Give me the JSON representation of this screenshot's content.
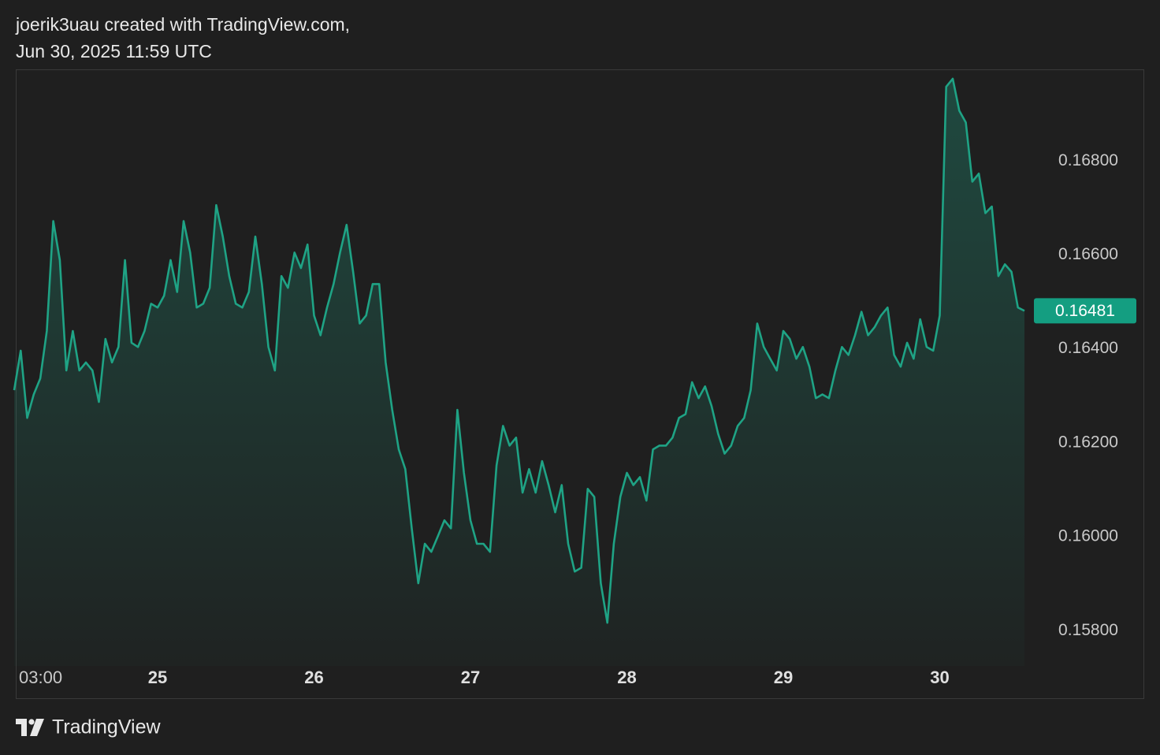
{
  "chart_data": {
    "type": "area",
    "title": "joerik3uau created with TradingView.com,",
    "subtitle": "Jun 30, 2025 11:59 UTC",
    "categories": [
      null,
      "03:00",
      null,
      null,
      null,
      null,
      null,
      null,
      null,
      null,
      null,
      null,
      null,
      null,
      null,
      null,
      null,
      null,
      null,
      null,
      null,
      null,
      "25",
      null,
      null,
      null,
      null,
      null,
      null,
      null,
      null,
      null,
      null,
      null,
      null,
      null,
      null,
      null,
      null,
      null,
      null,
      null,
      null,
      null,
      null,
      null,
      "26",
      null,
      null,
      null,
      null,
      null,
      null,
      null,
      null,
      null,
      null,
      null,
      null,
      null,
      null,
      null,
      null,
      null,
      null,
      null,
      null,
      null,
      null,
      null,
      "27",
      null,
      null,
      null,
      null,
      null,
      null,
      null,
      null,
      null,
      null,
      null,
      null,
      null,
      null,
      null,
      null,
      null,
      null,
      null,
      null,
      null,
      null,
      null,
      "28",
      null,
      null,
      null,
      null,
      null,
      null,
      null,
      null,
      null,
      null,
      null,
      null,
      null,
      null,
      null,
      null,
      null,
      null,
      null,
      null,
      null,
      null,
      null,
      "29",
      null,
      null,
      null,
      null,
      null,
      null,
      null,
      null,
      null,
      null,
      null,
      null,
      null,
      null,
      null,
      null,
      null,
      null,
      null,
      null,
      null,
      null,
      null,
      "30",
      null,
      null,
      null,
      null,
      null,
      null,
      null,
      null,
      null,
      null,
      null,
      null,
      null
    ],
    "series": [
      {
        "color": "#1fa385",
        "values": [
          0.16312,
          0.16396,
          0.16253,
          0.16303,
          0.16337,
          0.16438,
          0.16672,
          0.16589,
          0.16354,
          0.16438,
          0.16354,
          0.16371,
          0.16354,
          0.16287,
          0.16421,
          0.16371,
          0.16404,
          0.16589,
          0.16413,
          0.16404,
          0.16438,
          0.16496,
          0.16488,
          0.16513,
          0.16589,
          0.16521,
          0.16672,
          0.16605,
          0.16488,
          0.16496,
          0.1653,
          0.16706,
          0.16639,
          0.16555,
          0.16496,
          0.16488,
          0.16521,
          0.16639,
          0.16538,
          0.16404,
          0.16354,
          0.16555,
          0.1653,
          0.16605,
          0.16572,
          0.16622,
          0.16471,
          0.16429,
          0.16488,
          0.16538,
          0.16605,
          0.16664,
          0.16564,
          0.16454,
          0.16471,
          0.16538,
          0.16538,
          0.16371,
          0.1627,
          0.16186,
          0.16144,
          0.16018,
          0.15901,
          0.15985,
          0.15968,
          0.16001,
          0.16035,
          0.16018,
          0.1627,
          0.16136,
          0.16035,
          0.15985,
          0.15985,
          0.15968,
          0.16152,
          0.16236,
          0.16194,
          0.16211,
          0.16094,
          0.16144,
          0.16094,
          0.16161,
          0.1611,
          0.16052,
          0.1611,
          0.15985,
          0.15926,
          0.15934,
          0.16102,
          0.16085,
          0.15901,
          0.15817,
          0.15985,
          0.16085,
          0.16136,
          0.1611,
          0.16127,
          0.16077,
          0.16186,
          0.16194,
          0.16194,
          0.16211,
          0.16253,
          0.16261,
          0.16329,
          0.16295,
          0.1632,
          0.16278,
          0.16219,
          0.16177,
          0.16194,
          0.16236,
          0.16253,
          0.16312,
          0.16454,
          0.16404,
          0.16379,
          0.16354,
          0.16438,
          0.16421,
          0.16379,
          0.16404,
          0.16362,
          0.16295,
          0.16303,
          0.16295,
          0.16354,
          0.16404,
          0.16387,
          0.16429,
          0.16479,
          0.16429,
          0.16446,
          0.16471,
          0.16488,
          0.16387,
          0.16362,
          0.16413,
          0.16379,
          0.16463,
          0.16404,
          0.16396,
          0.16471,
          0.16958,
          0.16975,
          0.16907,
          0.16882,
          0.16756,
          0.16773,
          0.16689,
          0.16703,
          0.16555,
          0.1658,
          0.16564,
          0.16488,
          0.16481
        ]
      }
    ],
    "ylim": [
      0.15725,
      0.16995
    ],
    "yticks": [
      {
        "value": 0.158,
        "label": "0.15800"
      },
      {
        "value": 0.16,
        "label": "0.16000"
      },
      {
        "value": 0.162,
        "label": "0.16200"
      },
      {
        "value": 0.164,
        "label": "0.16400"
      },
      {
        "value": 0.166,
        "label": "0.16600"
      },
      {
        "value": 0.168,
        "label": "0.16800"
      }
    ],
    "grid": false
  },
  "brand": "TradingView"
}
